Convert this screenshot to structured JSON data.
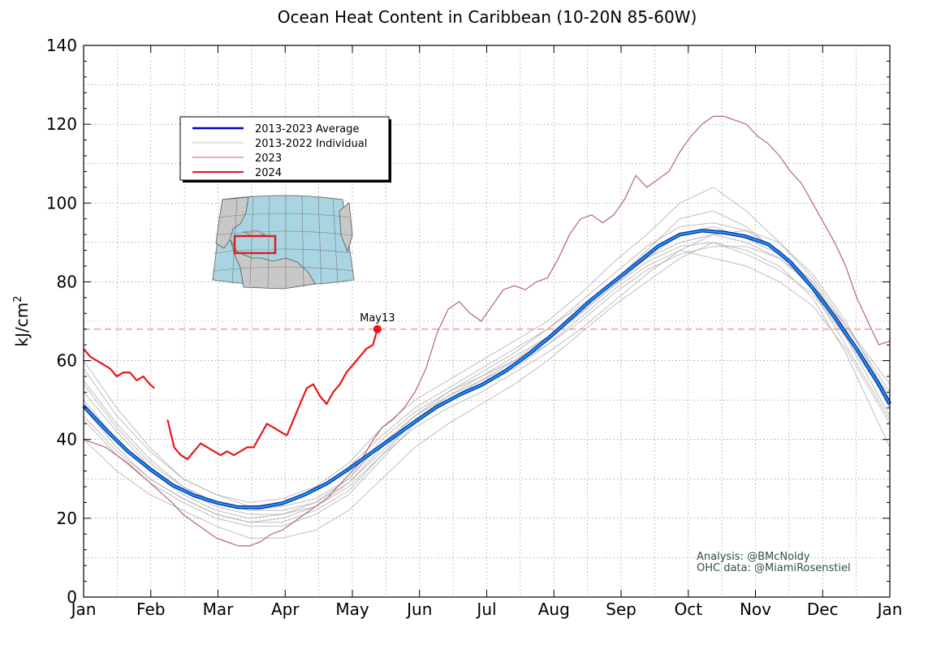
{
  "chart_data": {
    "type": "line",
    "title": "Ocean Heat Content in Caribbean (10-20N 85-60W)",
    "ylabel": "kJ/cm²",
    "ylabel_main": "kJ/cm",
    "ylabel_sup": "2",
    "xlabel": "",
    "ylim": [
      0,
      140
    ],
    "yticks": [
      0,
      20,
      40,
      60,
      80,
      100,
      120,
      140
    ],
    "xticks": [
      "Jan",
      "Feb",
      "Mar",
      "Apr",
      "May",
      "Jun",
      "Jul",
      "Aug",
      "Sep",
      "Oct",
      "Nov",
      "Dec",
      "Jan"
    ],
    "grid": true,
    "legend_position": "top-left",
    "legend": [
      {
        "label": "2013-2023 Average",
        "color": "#0000cc"
      },
      {
        "label": "2013-2022 Individual",
        "color": "#c8c8c8"
      },
      {
        "label": "2023",
        "color": "#b5657a"
      },
      {
        "label": "2024",
        "color": "#e8161b"
      }
    ],
    "threshold_line": {
      "y": 68,
      "color": "#f08a80"
    },
    "latest_point": {
      "label": "May13",
      "x": 133,
      "y": 68
    },
    "series": [
      {
        "name": "2013-2023 Average",
        "color": "#0058e0",
        "x": [
          0,
          10,
          20,
          30,
          40,
          50,
          60,
          70,
          80,
          90,
          100,
          110,
          120,
          130,
          140,
          150,
          160,
          170,
          180,
          190,
          200,
          210,
          220,
          230,
          240,
          250,
          260,
          270,
          280,
          290,
          300,
          310,
          320,
          330,
          340,
          350,
          360,
          365
        ],
        "y": [
          48.5,
          42.5,
          37,
          32.5,
          28.5,
          25.8,
          24,
          22.8,
          22.8,
          23.8,
          26,
          28.8,
          32.5,
          36.5,
          40.5,
          44.5,
          48.3,
          51.3,
          53.8,
          57,
          61,
          65.5,
          70.5,
          75.5,
          80,
          84.5,
          89,
          92,
          93,
          92.5,
          91.5,
          89.5,
          85,
          78.5,
          71,
          63,
          54,
          49
        ]
      },
      {
        "name": "2023",
        "color": "#b5657a",
        "x": [
          0,
          10,
          20,
          30,
          40,
          45,
          50,
          55,
          60,
          65,
          70,
          75,
          80,
          85,
          90,
          95,
          100,
          105,
          110,
          115,
          120,
          125,
          130,
          135,
          140,
          145,
          150,
          155,
          160,
          165,
          170,
          175,
          180,
          185,
          190,
          195,
          200,
          205,
          210,
          215,
          220,
          225,
          230,
          235,
          240,
          245,
          250,
          255,
          260,
          265,
          270,
          275,
          280,
          285,
          290,
          295,
          300,
          305,
          310,
          315,
          320,
          325,
          330,
          335,
          340,
          345,
          350,
          355,
          360,
          365
        ],
        "y": [
          40,
          38,
          34,
          29,
          24,
          21,
          19,
          17,
          15,
          14,
          13,
          13,
          14,
          16,
          17,
          19,
          21,
          23,
          25,
          28,
          31,
          34,
          39,
          43,
          45,
          48,
          52,
          58,
          67,
          73,
          75,
          72,
          70,
          74,
          78,
          79,
          78,
          80,
          81,
          86,
          92,
          96,
          97,
          95,
          97,
          101,
          107,
          104,
          106,
          108,
          113,
          117,
          120,
          122,
          122,
          121,
          120,
          117,
          115,
          112,
          108,
          105,
          100,
          95,
          90,
          84,
          76,
          70,
          64,
          65
        ]
      },
      {
        "name": "2024",
        "color": "#e8161b",
        "segments": [
          {
            "x": [
              0,
              3,
              6,
              9,
              12,
              15,
              18,
              21,
              24,
              27,
              30,
              32
            ],
            "y": [
              63,
              61,
              60,
              59,
              58,
              56,
              57,
              57,
              55,
              56,
              54,
              53
            ]
          },
          {
            "x": [
              38,
              41,
              44,
              47,
              50,
              53,
              56,
              59,
              62,
              65,
              68,
              71,
              74,
              77,
              80,
              83,
              86,
              89,
              92
            ],
            "y": [
              45,
              38,
              36,
              35,
              37,
              39,
              38,
              37,
              36,
              37,
              36,
              37,
              38,
              38,
              41,
              44,
              43,
              42,
              41
            ]
          },
          {
            "x": [
              92,
              95,
              98,
              101,
              104,
              107,
              110,
              113,
              116,
              119,
              122,
              125,
              128,
              131,
              133
            ],
            "y": [
              41,
              45,
              49,
              53,
              54,
              51,
              49,
              52,
              54,
              57,
              59,
              61,
              63,
              64,
              68
            ]
          }
        ]
      }
    ],
    "individual_years": {
      "name": "2013-2022 Individual",
      "color": "#a8a8a8",
      "x": [
        0,
        15,
        30,
        45,
        60,
        75,
        90,
        105,
        120,
        135,
        150,
        165,
        180,
        195,
        210,
        225,
        240,
        255,
        270,
        285,
        300,
        315,
        330,
        345,
        365
      ],
      "lines": [
        [
          55,
          44,
          35,
          28,
          24,
          22,
          23,
          25,
          30,
          40,
          47,
          52,
          57,
          62,
          68,
          75,
          82,
          89,
          94,
          95,
          93,
          88,
          80,
          68,
          48
        ],
        [
          60,
          48,
          38,
          30,
          26,
          23,
          24,
          27,
          33,
          41,
          48,
          53,
          58,
          63,
          68,
          74,
          80,
          86,
          90,
          92,
          90,
          86,
          79,
          69,
          52
        ],
        [
          45,
          36,
          29,
          24,
          20,
          18,
          18,
          21,
          26,
          35,
          44,
          50,
          55,
          60,
          66,
          73,
          80,
          88,
          96,
          98,
          94,
          87,
          78,
          64,
          45
        ],
        [
          52,
          42,
          33,
          27,
          23,
          21,
          21,
          23,
          28,
          36,
          43,
          48,
          52,
          57,
          62,
          68,
          75,
          82,
          88,
          92,
          93,
          90,
          82,
          70,
          50
        ],
        [
          40,
          32,
          26,
          22,
          18,
          15,
          15,
          17,
          22,
          30,
          38,
          44,
          49,
          54,
          60,
          67,
          74,
          80,
          86,
          90,
          88,
          84,
          76,
          62,
          38
        ],
        [
          50,
          40,
          32,
          26,
          22,
          20,
          21,
          24,
          29,
          38,
          46,
          52,
          56,
          60,
          65,
          72,
          79,
          85,
          89,
          90,
          87,
          83,
          77,
          66,
          49
        ],
        [
          58,
          46,
          37,
          30,
          26,
          24,
          25,
          28,
          34,
          43,
          50,
          55,
          60,
          65,
          70,
          77,
          85,
          92,
          100,
          104,
          98,
          90,
          81,
          69,
          54
        ],
        [
          48,
          38,
          30,
          25,
          21,
          19,
          19,
          22,
          27,
          36,
          45,
          50,
          54,
          58,
          64,
          71,
          78,
          84,
          88,
          86,
          84,
          80,
          74,
          63,
          44
        ],
        [
          54,
          43,
          34,
          28,
          24,
          22,
          22,
          24,
          30,
          39,
          46,
          51,
          56,
          61,
          66,
          72,
          79,
          86,
          92,
          94,
          91,
          87,
          80,
          67,
          51
        ],
        [
          46,
          37,
          30,
          25,
          21,
          19,
          20,
          23,
          29,
          37,
          45,
          51,
          55,
          59,
          64,
          70,
          77,
          83,
          87,
          89,
          89,
          86,
          79,
          66,
          46
        ]
      ]
    }
  },
  "credits": {
    "analysis": "Analysis: @BMcNoldy",
    "data": "OHC data: @MiamiRosenstiel"
  },
  "map_inset": {
    "description_icon": "caribbean-region-map-icon",
    "land_color": "#c8c8c8",
    "ocean_color": "#a9d4e2",
    "box_color": "#e01a1a"
  }
}
